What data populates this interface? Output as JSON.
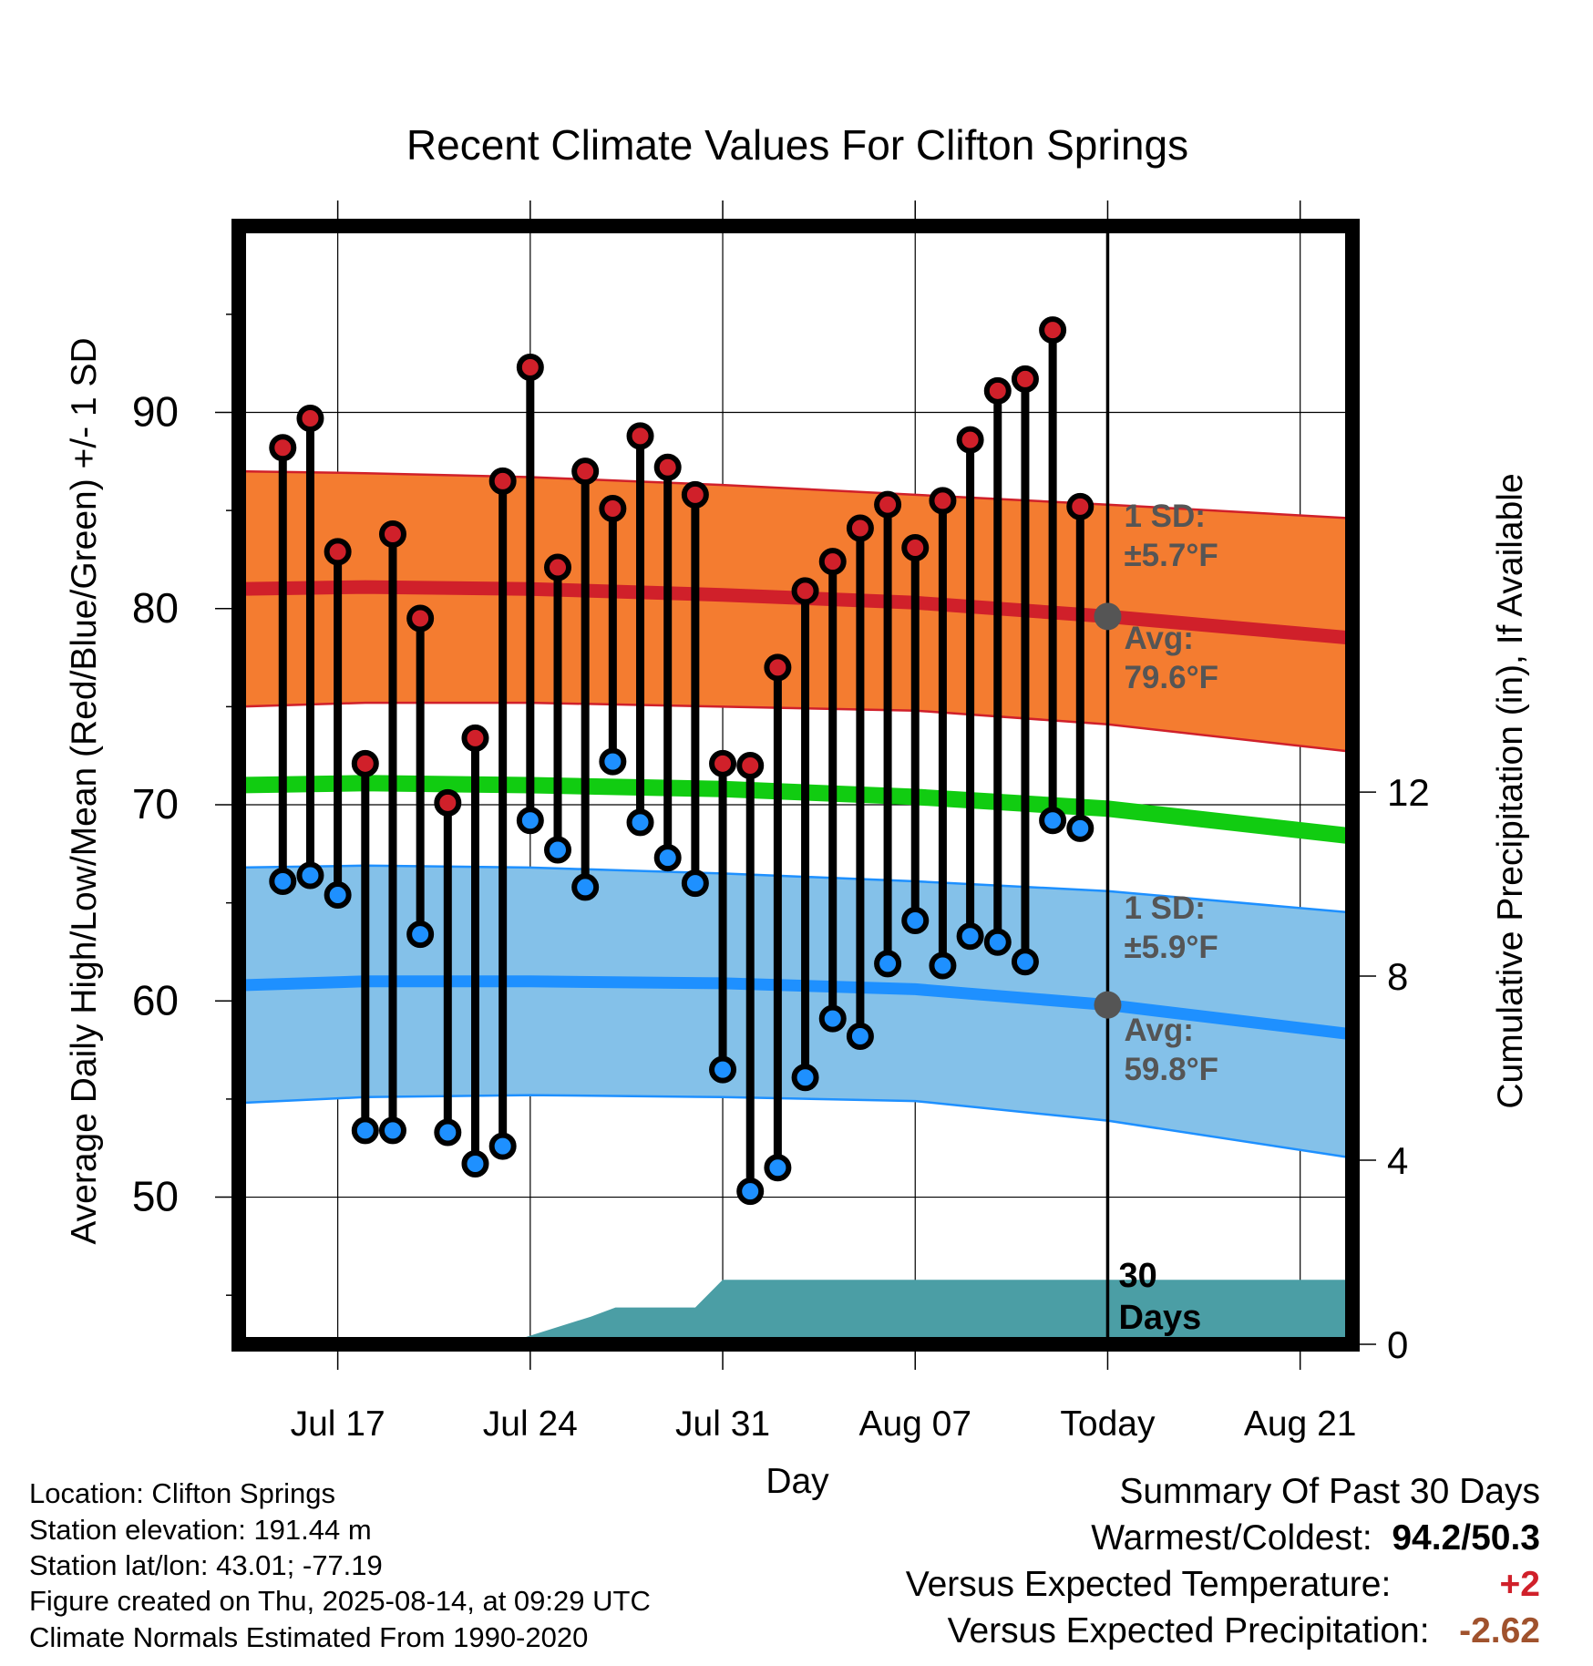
{
  "chart_data": {
    "type": "line",
    "title": "Recent Climate Values For Clifton Springs",
    "xlabel": "Day",
    "ylabel": "Average Daily High/Low/Mean (Red/Blue/Green) +/- 1 SD",
    "y2label": "Cumulative Precipitation (in), If Available",
    "ylim": [
      42.5,
      99.5
    ],
    "y_ticks": [
      50,
      60,
      70,
      80,
      90
    ],
    "y2lim": [
      0,
      24.3
    ],
    "y2_ticks": [
      0,
      4,
      8,
      12
    ],
    "x_ticks": [
      "Jul 17",
      "Jul 24",
      "Jul 31",
      "Aug 07",
      "Today",
      "Aug 21"
    ],
    "x_tick_days": [
      17,
      24,
      31,
      38,
      45,
      52
    ],
    "xlim": [
      13.4,
      53.9
    ],
    "grid": true,
    "days": [
      15,
      16,
      17,
      18,
      19,
      20,
      21,
      22,
      23,
      24,
      25,
      26,
      27,
      28,
      29,
      30,
      31,
      32,
      33,
      34,
      35,
      36,
      37,
      38,
      39,
      40,
      41,
      42,
      43,
      44
    ],
    "series": [
      {
        "name": "High",
        "color": "#d0202a",
        "values": [
          88.2,
          89.7,
          82.9,
          72.1,
          83.8,
          79.5,
          70.1,
          73.4,
          86.5,
          92.3,
          82.1,
          87.0,
          85.1,
          88.8,
          87.2,
          85.8,
          72.1,
          72.0,
          77.0,
          80.9,
          82.4,
          84.1,
          85.3,
          83.1,
          85.5,
          88.6,
          91.1,
          91.7,
          94.2,
          85.2
        ]
      },
      {
        "name": "Low",
        "color": "#1e90ff",
        "values": [
          66.1,
          66.4,
          65.4,
          53.4,
          53.4,
          63.4,
          53.3,
          51.7,
          52.6,
          69.2,
          67.7,
          65.8,
          72.2,
          69.1,
          67.3,
          66.0,
          56.5,
          50.3,
          51.5,
          56.1,
          59.1,
          58.2,
          61.9,
          64.1,
          61.8,
          63.3,
          63.0,
          62.0,
          69.2,
          68.8
        ]
      }
    ],
    "normals": {
      "days": [
        13.4,
        18,
        24,
        31,
        38,
        45,
        53.9
      ],
      "high_avg": [
        81.0,
        81.1,
        81.0,
        80.7,
        80.3,
        79.6,
        78.5
      ],
      "high_sd_upper": [
        87.0,
        86.9,
        86.7,
        86.3,
        85.8,
        85.3,
        84.6
      ],
      "high_sd_lower": [
        75.0,
        75.2,
        75.2,
        75.0,
        74.8,
        74.1,
        72.7
      ],
      "mean": [
        71.0,
        71.1,
        71.0,
        70.8,
        70.4,
        69.8,
        68.4
      ],
      "low_avg": [
        60.8,
        61.0,
        61.0,
        60.9,
        60.6,
        59.8,
        58.3
      ],
      "low_sd_upper": [
        66.8,
        66.9,
        66.8,
        66.5,
        66.1,
        65.6,
        64.5
      ],
      "low_sd_lower": [
        54.8,
        55.1,
        55.2,
        55.1,
        54.9,
        53.9,
        52.0
      ]
    },
    "precip": {
      "days": [
        13.4,
        22.7,
        23.0,
        26.2,
        27.1,
        30.0,
        31.0,
        53.9
      ],
      "values": [
        0,
        0,
        0,
        0.6,
        0.8,
        0.8,
        1.4,
        1.4
      ]
    },
    "today_day": 45,
    "annotations": {
      "high_sd_label": "1 SD:",
      "high_sd_value": "±5.7°F",
      "high_avg_label": "Avg:",
      "high_avg_value": "79.6°F",
      "low_sd_label": "1 SD:",
      "low_sd_value": "±5.9°F",
      "low_avg_label": "Avg:",
      "low_avg_value": "59.8°F",
      "days_number": "30",
      "days_word": "Days"
    },
    "colors": {
      "high_band": "#f47c30",
      "high_line": "#d0202a",
      "mean_line": "#11cc11",
      "low_band": "#84c1e9",
      "low_line": "#1e90ff",
      "precip": "#4b9ea5",
      "marker_today": "#555555",
      "annotation": "#555555"
    }
  },
  "info": {
    "location": "Location: Clifton Springs",
    "elevation": "Station elevation: 191.44 m",
    "latlon": "Station lat/lon: 43.01; -77.19",
    "created": "Figure created on Thu, 2025-08-14, at 09:29 UTC",
    "normals_period": "Climate Normals Estimated From 1990-2020"
  },
  "summary": {
    "title": "Summary Of Past 30 Days",
    "warm_cold_label": "Warmest/Coldest:",
    "warm_cold_value": "94.2/50.3",
    "temp_label": "Versus Expected Temperature:",
    "temp_value": "+2",
    "temp_color": "#d0202a",
    "precip_label": "Versus Expected Precipitation:",
    "precip_value": "-2.62",
    "precip_color": "#a0522d"
  }
}
